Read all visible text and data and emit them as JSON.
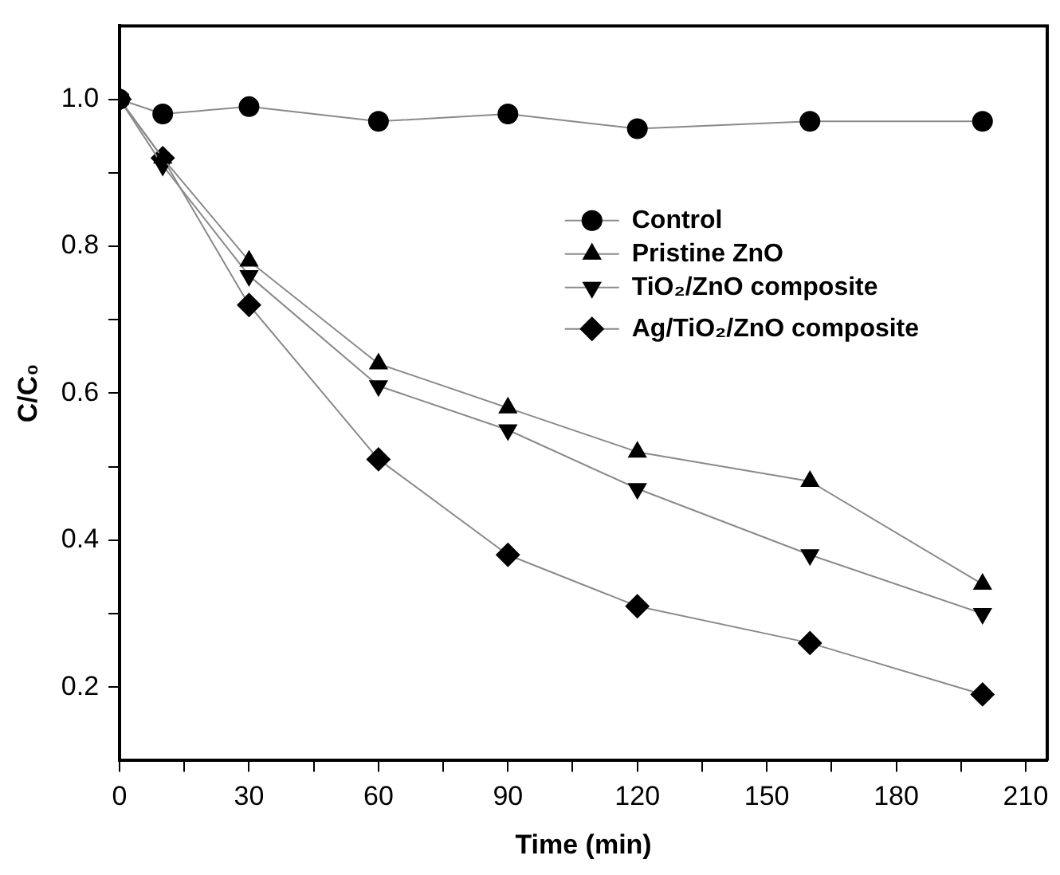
{
  "chart_data": {
    "type": "line",
    "xlabel": "Time (min)",
    "ylabel": "C/C₀",
    "x": [
      0,
      10,
      30,
      60,
      90,
      120,
      160,
      200
    ],
    "series": [
      {
        "name": "Control",
        "color": "#000000",
        "marker": "circle",
        "values": [
          1.0,
          0.98,
          0.99,
          0.97,
          0.98,
          0.96,
          0.97,
          0.97
        ]
      },
      {
        "name": "Pristine ZnO",
        "color": "#000000",
        "marker": "triangle",
        "values": [
          1.0,
          0.92,
          0.78,
          0.64,
          0.58,
          0.52,
          0.48,
          0.34
        ]
      },
      {
        "name": "TiO₂/ZnO composite",
        "color": "#000000",
        "marker": "triangle-down",
        "values": [
          1.0,
          0.91,
          0.76,
          0.61,
          0.55,
          0.47,
          0.38,
          0.3
        ]
      },
      {
        "name": "Ag/TiO₂/ZnO composite",
        "color": "#000000",
        "marker": "diamond",
        "values": [
          1.0,
          0.92,
          0.72,
          0.51,
          0.38,
          0.31,
          0.26,
          0.19
        ]
      }
    ],
    "xlim": [
      0,
      215
    ],
    "xticks": [
      0,
      {
        "value": 15,
        "label": null
      },
      30,
      {
        "value": 45,
        "label": null
      },
      60,
      {
        "value": 75,
        "label": null
      },
      90,
      {
        "value": 105,
        "label": null
      },
      120,
      {
        "value": 135,
        "label": null
      },
      150,
      {
        "value": 165,
        "label": null
      },
      180,
      {
        "value": 195,
        "label": null
      },
      210
    ],
    "ylim": [
      0.1,
      1.1
    ],
    "yticks": [
      0.2,
      {
        "value": 0.3,
        "label": null
      },
      0.4,
      {
        "value": 0.5,
        "label": null
      },
      0.6,
      {
        "value": 0.7,
        "label": null
      },
      0.8,
      {
        "value": 0.9,
        "label": null
      },
      {
        "value": 1.0,
        "label": "1.0"
      }
    ],
    "grid": false,
    "legend": "top right",
    "line_style": "solid"
  }
}
